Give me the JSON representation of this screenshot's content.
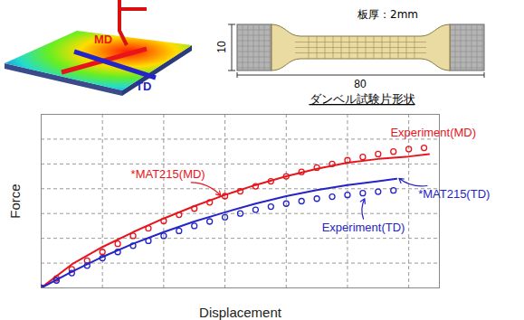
{
  "chart_data": {
    "type": "line",
    "x_label": "Displacement",
    "y_label": "Force",
    "xlim": [
      0,
      6.5
    ],
    "xticks": [
      0,
      1,
      2,
      3,
      4,
      5,
      6
    ],
    "ylim": [
      0,
      7
    ],
    "yticks": [
      0,
      1,
      2,
      3,
      4,
      5,
      6,
      7
    ],
    "grid": true,
    "tick_labels": false,
    "series": [
      {
        "name": "Experiment(MD)",
        "type": "scatter",
        "marker": "circle",
        "color": "#e8141c",
        "x": [
          0,
          0.25,
          0.5,
          0.75,
          1,
          1.25,
          1.5,
          1.75,
          2,
          2.25,
          2.5,
          2.75,
          3,
          3.25,
          3.5,
          3.75,
          4,
          4.25,
          4.5,
          4.75,
          5,
          5.25,
          5.5,
          5.75,
          6,
          6.25
        ],
        "values": [
          0,
          0.38,
          0.75,
          1.1,
          1.45,
          1.78,
          2.1,
          2.4,
          2.7,
          2.95,
          3.2,
          3.45,
          3.7,
          3.9,
          4.1,
          4.3,
          4.5,
          4.68,
          4.85,
          5.0,
          5.15,
          5.28,
          5.4,
          5.5,
          5.6,
          5.65
        ]
      },
      {
        "name": "*MAT215(MD)",
        "type": "line",
        "line_style": "solid",
        "color": "#e8141c",
        "x": [
          0,
          0.5,
          1,
          1.5,
          2,
          2.5,
          3,
          3.5,
          4,
          4.5,
          5,
          5.5,
          6,
          6.33
        ],
        "values": [
          0,
          0.95,
          1.65,
          2.25,
          2.8,
          3.3,
          3.75,
          4.15,
          4.5,
          4.8,
          5.05,
          5.2,
          5.3,
          5.4
        ]
      },
      {
        "name": "Experiment(TD)",
        "type": "scatter",
        "marker": "circle",
        "color": "#2424c8",
        "x": [
          0,
          0.25,
          0.5,
          0.75,
          1,
          1.25,
          1.5,
          1.75,
          2,
          2.25,
          2.5,
          2.75,
          3,
          3.25,
          3.5,
          3.75,
          4,
          4.25,
          4.5,
          4.75,
          5,
          5.25,
          5.5,
          5.75
        ],
        "values": [
          0,
          0.3,
          0.6,
          0.9,
          1.2,
          1.45,
          1.7,
          1.9,
          2.1,
          2.3,
          2.5,
          2.68,
          2.85,
          3.0,
          3.15,
          3.28,
          3.4,
          3.5,
          3.6,
          3.68,
          3.75,
          3.82,
          3.88,
          3.93
        ]
      },
      {
        "name": "*MAT215(TD)",
        "type": "line",
        "line_style": "solid",
        "color": "#2424c8",
        "x": [
          0,
          0.5,
          1,
          1.5,
          2,
          2.5,
          3,
          3.5,
          4,
          4.5,
          5,
          5.5,
          5.8
        ],
        "values": [
          0,
          0.65,
          1.25,
          1.78,
          2.25,
          2.68,
          3.05,
          3.4,
          3.7,
          3.95,
          4.15,
          4.3,
          4.4
        ]
      }
    ],
    "annotations": [
      {
        "text": "Experiment(MD)",
        "color": "#e8141c",
        "x": 6.4,
        "y": 6.25
      },
      {
        "text": "*MAT215(MD)",
        "color": "#e8141c",
        "x": 2.07,
        "y": 4.57,
        "arrow": [
          2.45,
          4.25,
          2.93,
          3.72
        ]
      },
      {
        "text": "*MAT215(TD)",
        "color": "#2424c8",
        "x": 6.74,
        "y": 3.79,
        "arrow": [
          6.3,
          4.12,
          5.84,
          4.42
        ]
      },
      {
        "text": "Experiment(TD)",
        "color": "#2424c8",
        "x": 5.26,
        "y": 2.43,
        "arrow": [
          5.26,
          2.78,
          5.28,
          3.6
        ]
      }
    ]
  },
  "illustration": {
    "labels": [
      {
        "text": "MD",
        "color": "#e8141c"
      },
      {
        "text": "TD",
        "color": "#2424c8"
      }
    ]
  },
  "specimen": {
    "thickness_label": "板厚：2mm",
    "width": 10,
    "length": 80,
    "caption": "ダンベル試験片形状"
  }
}
